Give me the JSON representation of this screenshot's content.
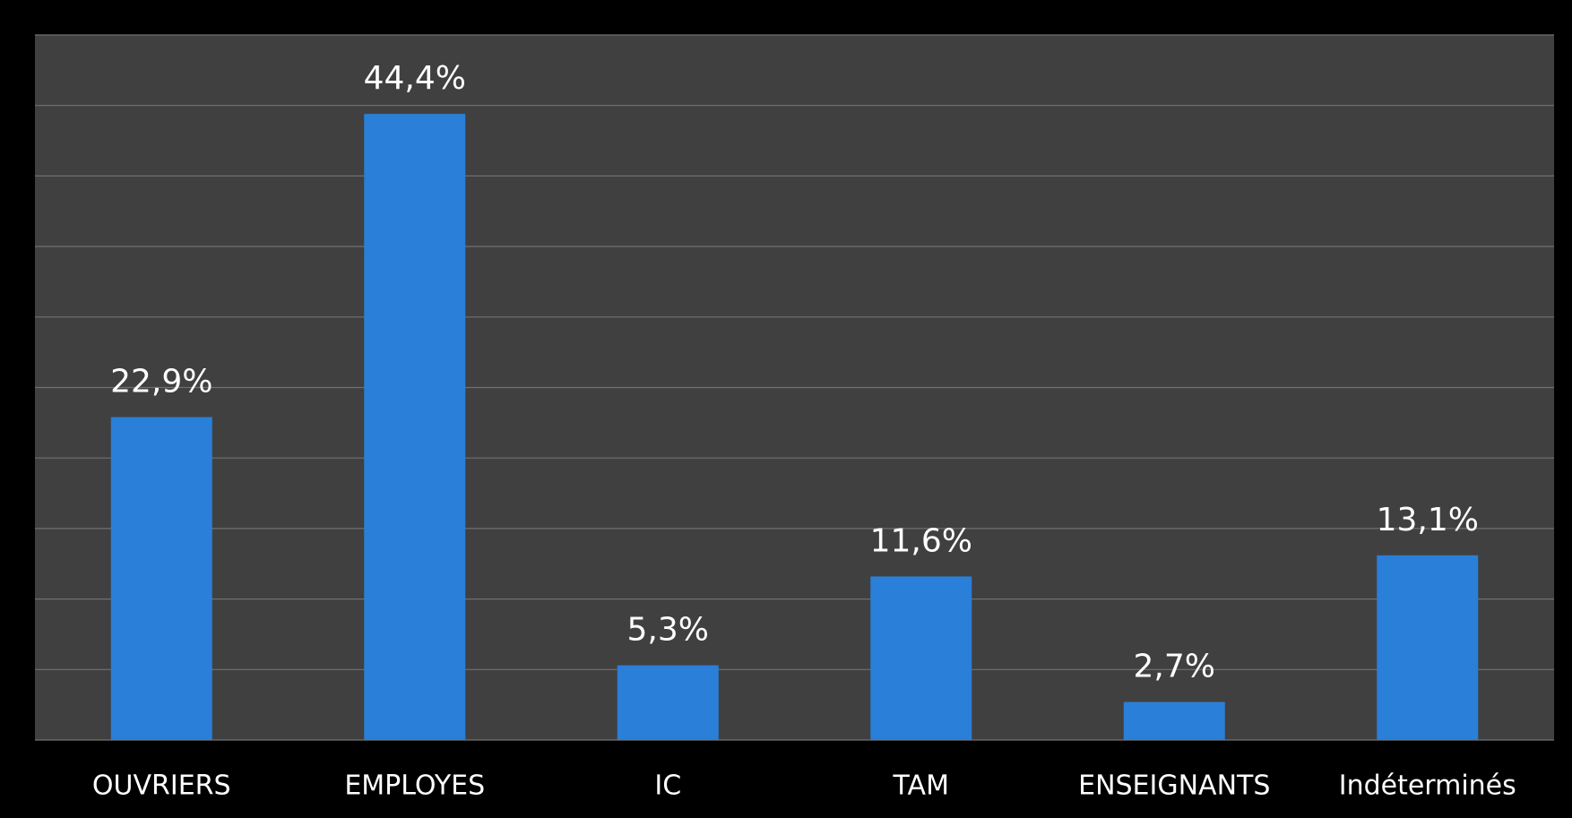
{
  "chart_data": {
    "type": "bar",
    "categories": [
      "OUVRIERS",
      "EMPLOYES",
      "IC",
      "TAM",
      "ENSEIGNANTS",
      "Indéterminés"
    ],
    "values": [
      22.9,
      44.4,
      5.3,
      11.6,
      2.7,
      13.1
    ],
    "value_labels": [
      "22,9%",
      "44,4%",
      "5,3%",
      "11,6%",
      "2,7%",
      "13,1%"
    ],
    "color": "#2a7fd8",
    "ylim": [
      0,
      50
    ],
    "yticks": [
      0,
      5,
      10,
      15,
      20,
      25,
      30,
      35,
      40,
      45,
      50
    ],
    "grid": true
  }
}
